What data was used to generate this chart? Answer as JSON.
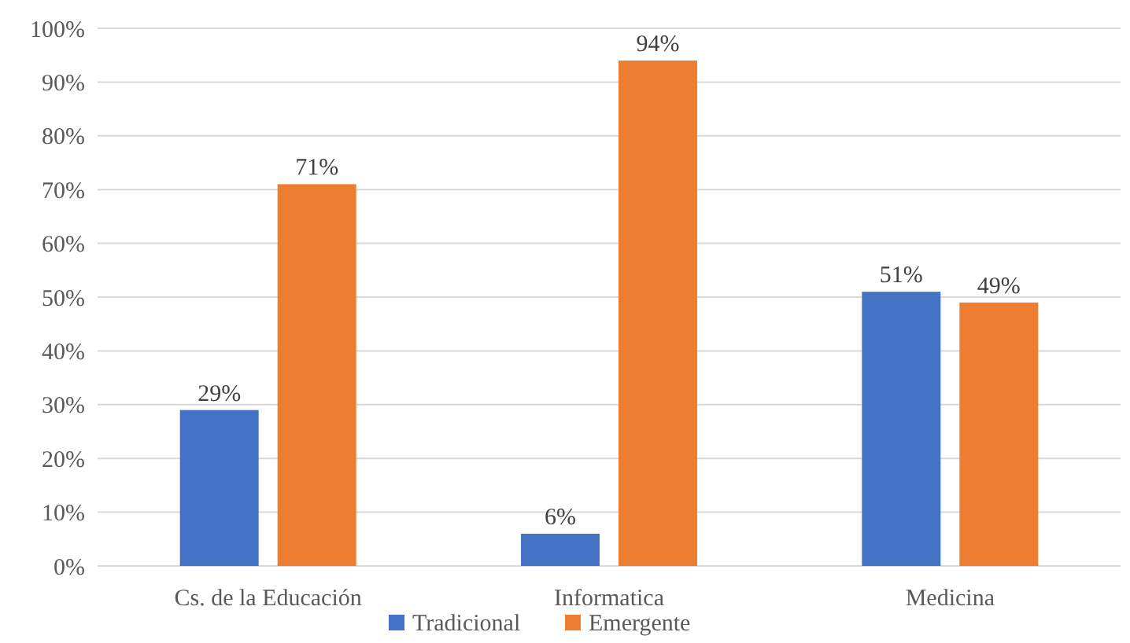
{
  "chart_data": {
    "type": "bar",
    "categories": [
      "Cs. de la Educación",
      "Informatica",
      "Medicina"
    ],
    "series": [
      {
        "name": "Tradicional",
        "color": "#4472c4",
        "values": [
          29,
          6,
          51
        ],
        "value_labels": [
          "29%",
          "6%",
          "51%"
        ]
      },
      {
        "name": "Emergente",
        "color": "#ed7d31",
        "values": [
          71,
          94,
          49
        ],
        "value_labels": [
          "71%",
          "94%",
          "49%"
        ]
      }
    ],
    "ylim": [
      0,
      100
    ],
    "yticks": [
      {
        "value": 0,
        "label": "0%"
      },
      {
        "value": 10,
        "label": "10%"
      },
      {
        "value": 20,
        "label": "20%"
      },
      {
        "value": 30,
        "label": "30%"
      },
      {
        "value": 40,
        "label": "40%"
      },
      {
        "value": 50,
        "label": "50%"
      },
      {
        "value": 60,
        "label": "60%"
      },
      {
        "value": 70,
        "label": "70%"
      },
      {
        "value": 80,
        "label": "80%"
      },
      {
        "value": 90,
        "label": "90%"
      },
      {
        "value": 100,
        "label": "100%"
      }
    ],
    "grid": "y",
    "legend": "bottom"
  }
}
